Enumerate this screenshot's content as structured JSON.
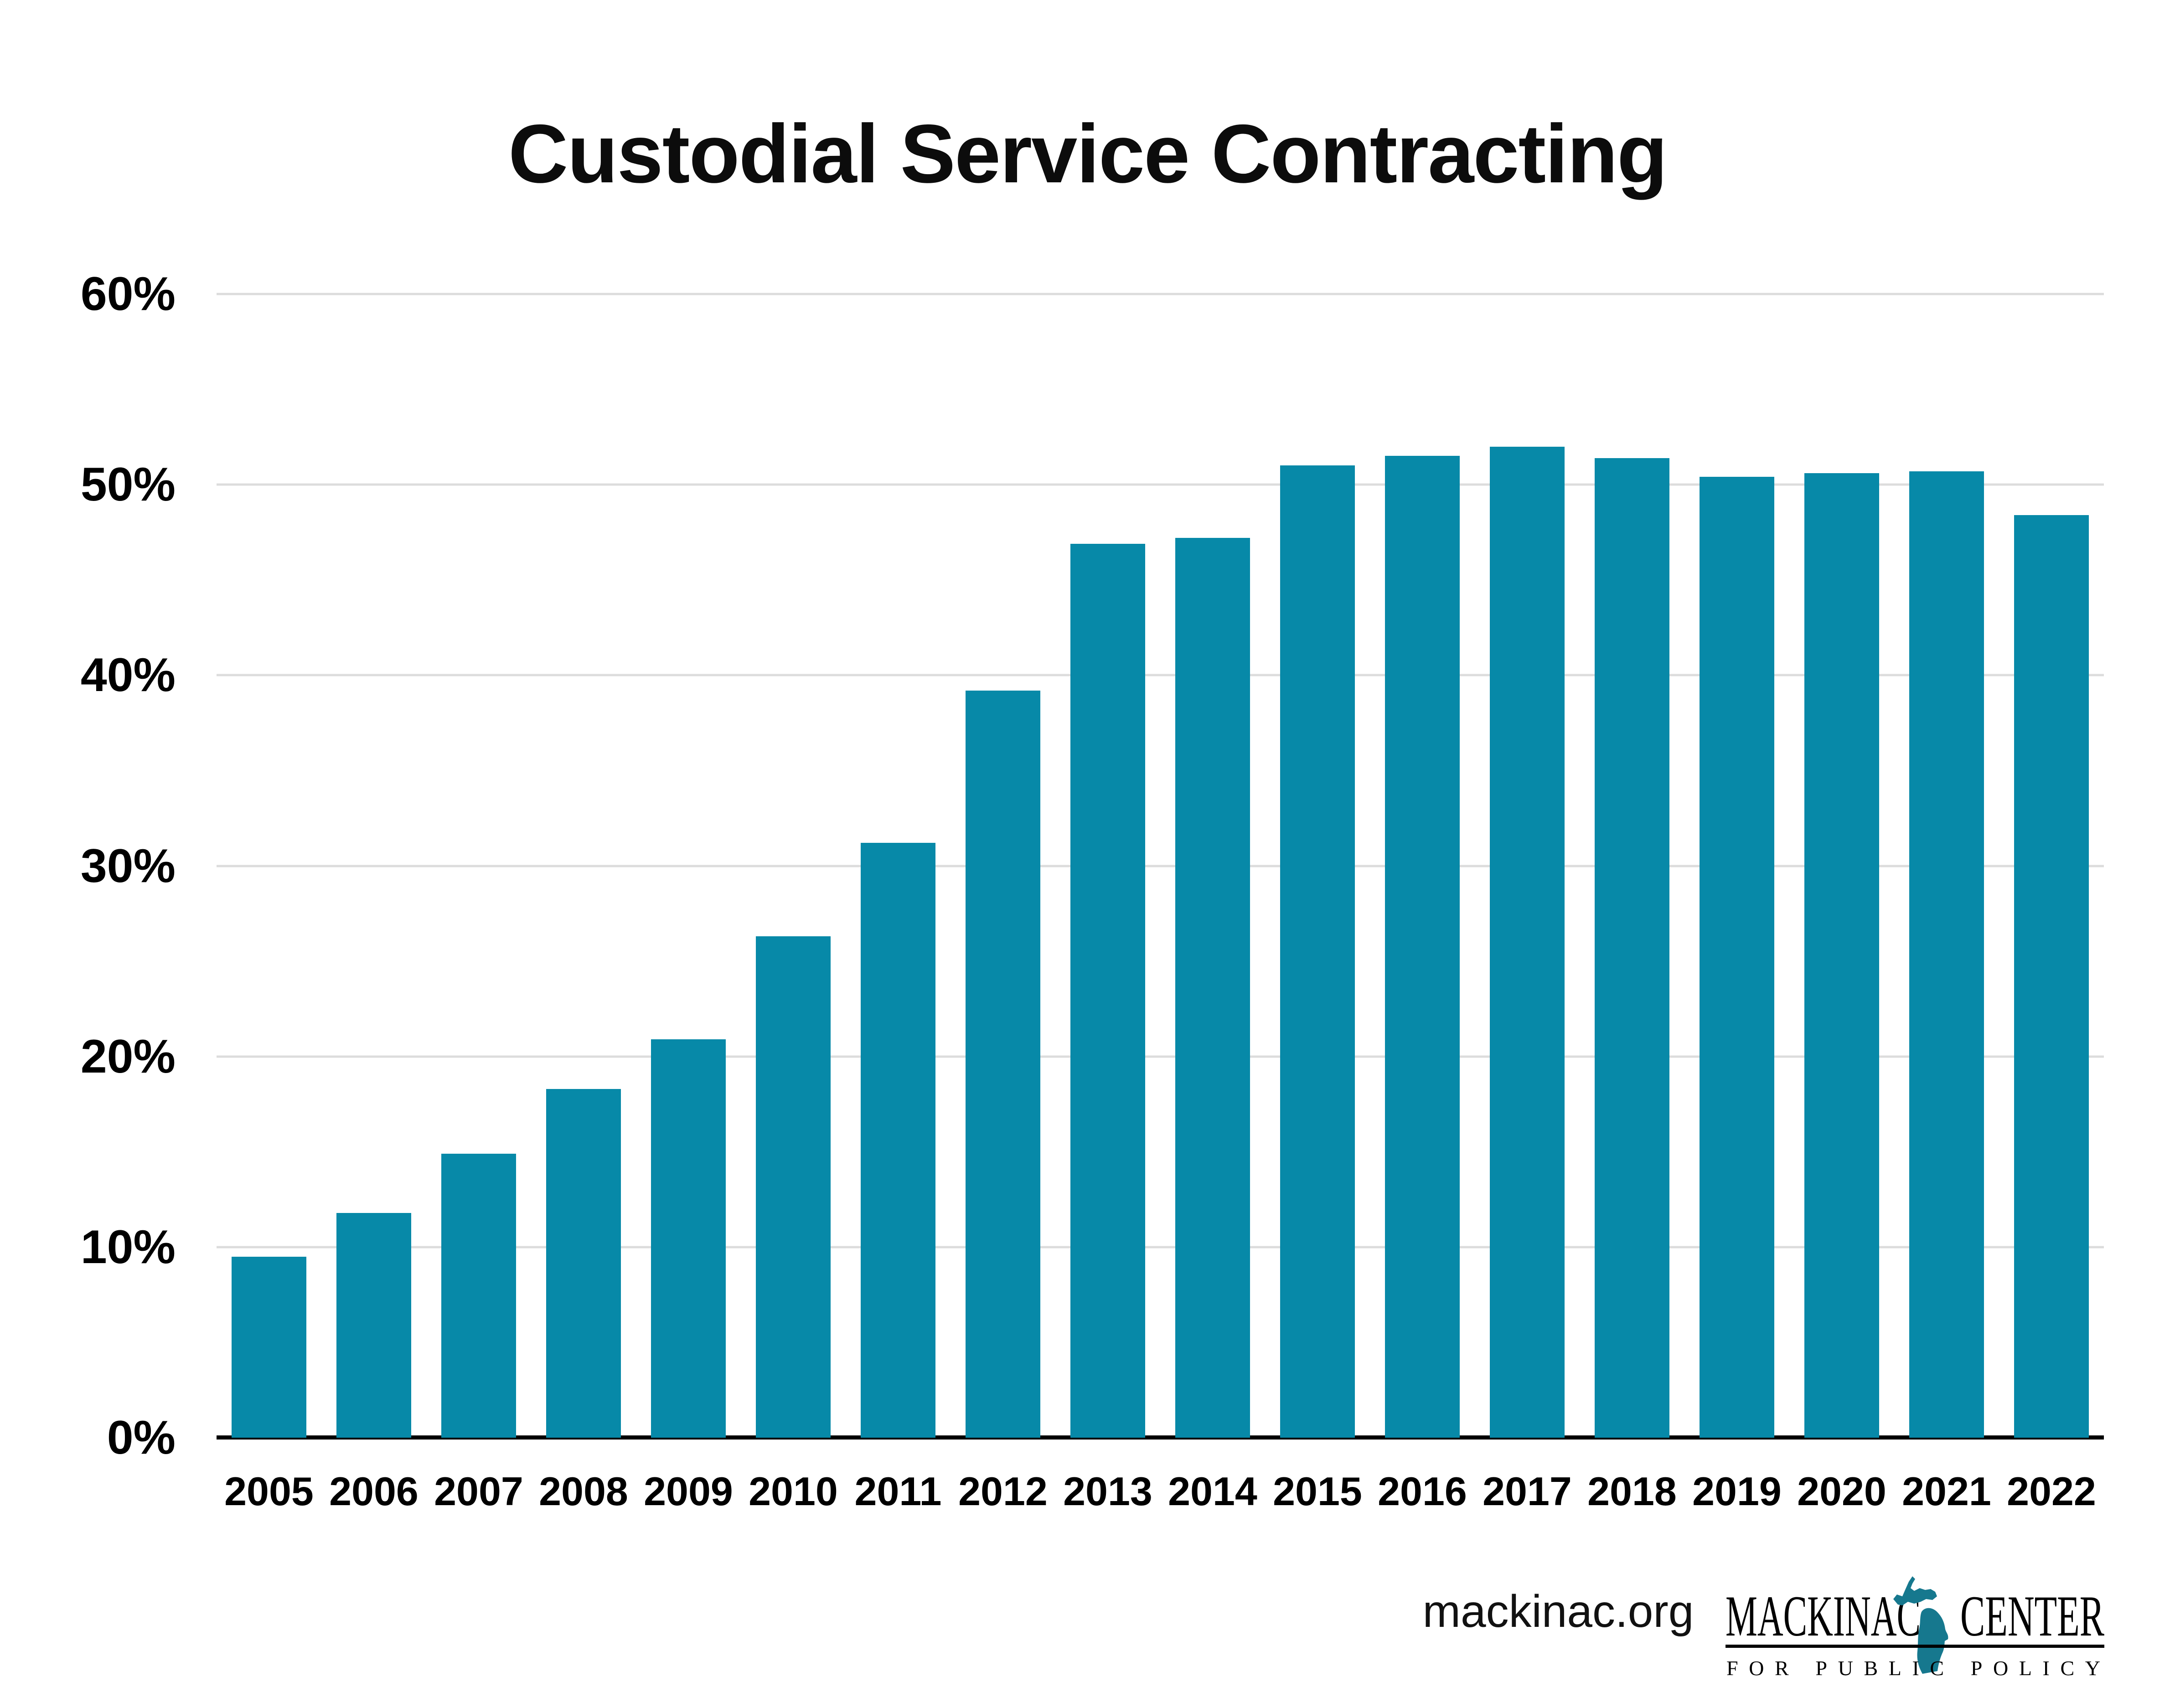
{
  "title": "Custodial Service Contracting",
  "footer": {
    "website": "mackinac.org",
    "logo": {
      "word_left": "MACKINAC",
      "word_right": "CENTER",
      "tagline": "FOR PUBLIC POLICY",
      "michigan_icon": "michigan-state-silhouette"
    }
  },
  "colors": {
    "bar": "#0789a8",
    "gridline": "#dcdcdc",
    "axis": "#000000",
    "logo_teal": "#16788e",
    "text": "#000000"
  },
  "chart_data": {
    "type": "bar",
    "title": "Custodial Service Contracting",
    "categories": [
      "2005",
      "2006",
      "2007",
      "2008",
      "2009",
      "2010",
      "2011",
      "2012",
      "2013",
      "2014",
      "2015",
      "2016",
      "2017",
      "2018",
      "2019",
      "2020",
      "2021",
      "2022"
    ],
    "values": [
      9.5,
      11.8,
      14.9,
      18.3,
      20.9,
      26.3,
      31.2,
      39.2,
      46.9,
      47.2,
      51.0,
      51.5,
      52.0,
      51.4,
      50.4,
      50.6,
      50.7,
      48.4
    ],
    "unit": "%",
    "xlabel": "",
    "ylabel": "",
    "ylim": [
      0,
      60
    ],
    "ytick_step": 10,
    "yticks": [
      "0%",
      "10%",
      "20%",
      "30%",
      "40%",
      "50%",
      "60%"
    ],
    "grid": true,
    "legend": false
  }
}
